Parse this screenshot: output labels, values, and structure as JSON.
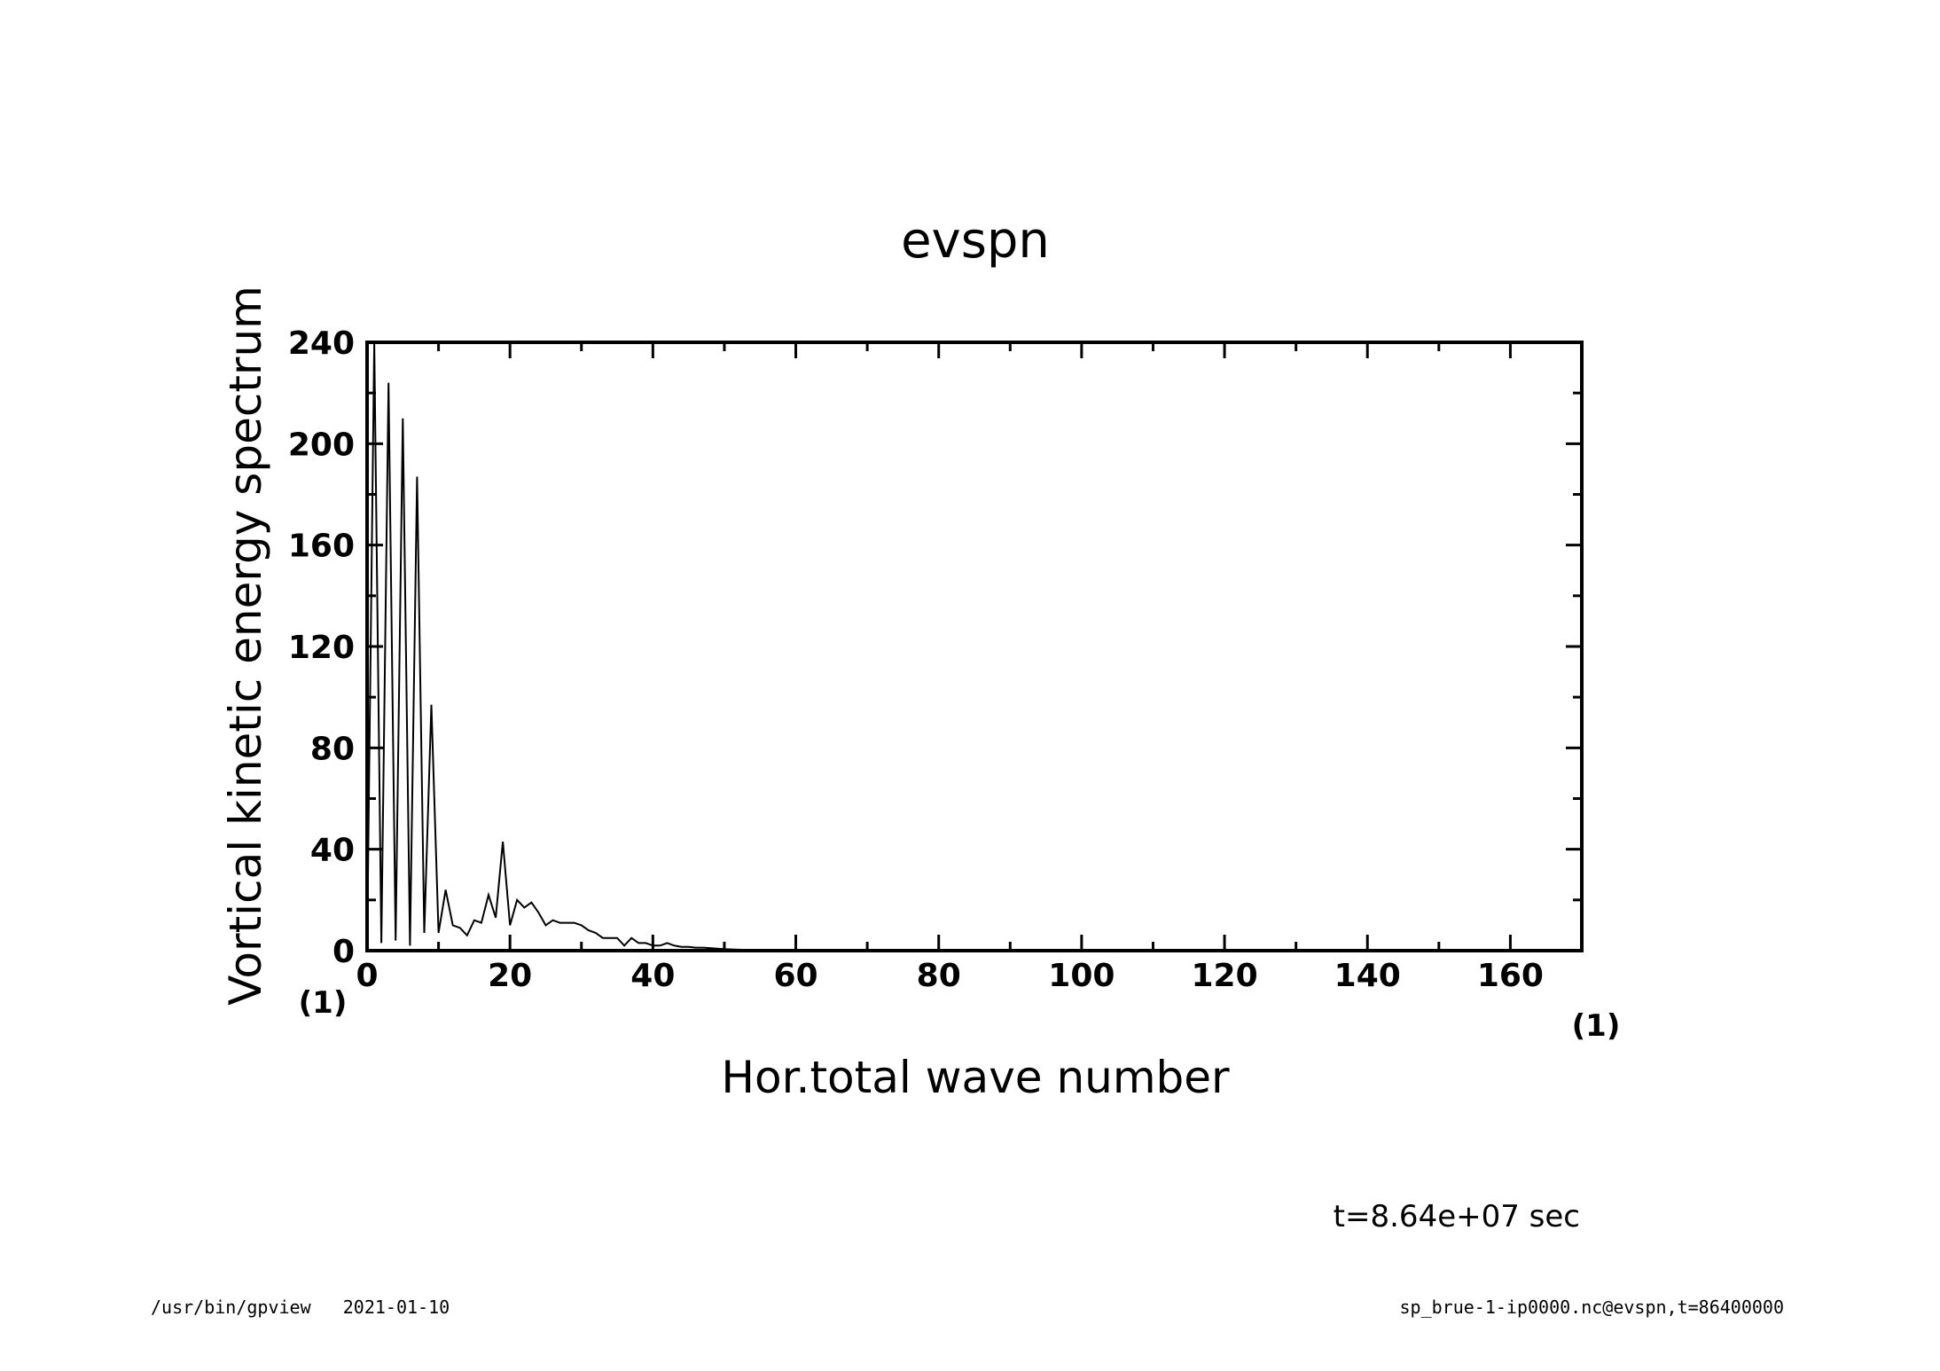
{
  "chart_data": {
    "type": "line",
    "title": "evspn",
    "xlabel": "Hor.total wave number",
    "ylabel": "Vortical kinetic energy spectrum",
    "x_unit": "(1)",
    "y_unit": "(1)",
    "xlim": [
      0,
      170
    ],
    "ylim": [
      0,
      240
    ],
    "x_ticks": [
      0,
      20,
      40,
      60,
      80,
      100,
      120,
      140,
      160
    ],
    "y_ticks": [
      0,
      40,
      80,
      120,
      160,
      200,
      240
    ],
    "grid": false,
    "series": [
      {
        "color": "#000000",
        "x": [
          0,
          1,
          2,
          3,
          4,
          5,
          6,
          7,
          8,
          9,
          10,
          11,
          12,
          13,
          14,
          15,
          16,
          17,
          18,
          19,
          20,
          21,
          22,
          23,
          24,
          25,
          26,
          27,
          28,
          29,
          30,
          31,
          32,
          33,
          34,
          35,
          36,
          37,
          38,
          39,
          40,
          41,
          42,
          43,
          44,
          45,
          46,
          47,
          48,
          49,
          50,
          51,
          52,
          53,
          54,
          55,
          56,
          57,
          58,
          59,
          60,
          65,
          70,
          80,
          90,
          100,
          120,
          140,
          160,
          170
        ],
        "y": [
          0,
          245,
          3,
          224,
          4,
          210,
          2,
          187,
          7,
          97,
          7,
          24,
          10,
          9,
          6,
          12,
          11,
          22,
          13,
          43,
          10,
          20,
          17,
          19,
          15,
          10,
          12,
          11,
          11,
          11,
          10,
          8,
          7,
          5,
          5,
          5,
          2,
          5,
          3,
          3,
          2,
          2,
          3,
          2,
          1.5,
          1.5,
          1.2,
          1.2,
          1,
          0.8,
          0.6,
          0.5,
          0.4,
          0.3,
          0.3,
          0.2,
          0.2,
          0.1,
          0.1,
          0.1,
          0.1,
          0.05,
          0,
          0,
          0,
          0,
          0,
          0,
          0,
          0
        ]
      }
    ]
  },
  "annotation": {
    "time": "t=8.64e+07 sec"
  },
  "footer": {
    "left": "/usr/bin/gpview   2021-01-10",
    "right": "sp_brue-1-ip0000.nc@evspn,t=86400000"
  }
}
